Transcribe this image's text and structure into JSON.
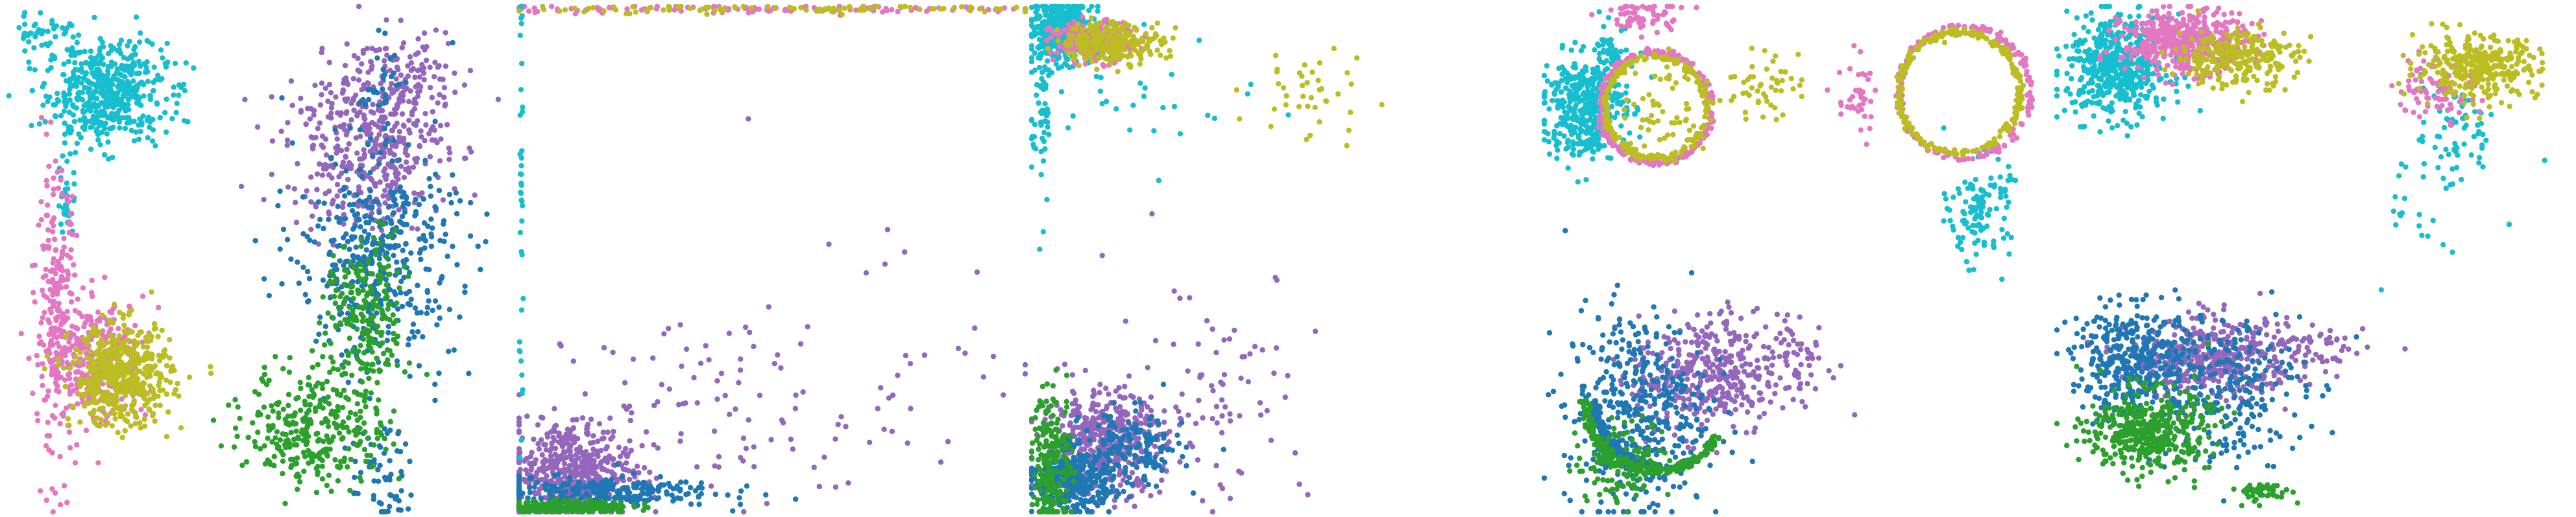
{
  "colors": {
    "cyan": "#17becf",
    "pink": "#e377c2",
    "olive": "#bcbd22",
    "purple": "#9467bd",
    "blue": "#1f77b4",
    "green": "#2ca02c"
  },
  "chart_data": [
    {
      "type": "scatter",
      "panel": 1,
      "grid": false,
      "axes": "hidden",
      "series": [
        {
          "color": "cyan",
          "clusters": [
            {
              "cx": 0.2,
              "cy": 0.83,
              "sx": 0.06,
              "sy": 0.05,
              "n": 520
            },
            {
              "cx": 0.08,
              "cy": 0.95,
              "sx": 0.03,
              "sy": 0.02,
              "n": 40
            },
            {
              "cx": 0.12,
              "cy": 0.62,
              "sx": 0.01,
              "sy": 0.04,
              "n": 30
            }
          ]
        },
        {
          "color": "pink",
          "clusters": [
            {
              "cx": 0.1,
              "cy": 0.38,
              "sx": 0.02,
              "sy": 0.14,
              "n": 220
            },
            {
              "cx": 0.18,
              "cy": 0.3,
              "sx": 0.05,
              "sy": 0.06,
              "n": 300
            }
          ]
        },
        {
          "color": "olive",
          "clusters": [
            {
              "cx": 0.23,
              "cy": 0.27,
              "sx": 0.05,
              "sy": 0.05,
              "n": 500
            }
          ]
        },
        {
          "color": "purple",
          "clusters": [
            {
              "cx": 0.72,
              "cy": 0.72,
              "sx": 0.08,
              "sy": 0.08,
              "n": 420
            },
            {
              "cx": 0.8,
              "cy": 0.86,
              "sx": 0.06,
              "sy": 0.05,
              "n": 120
            }
          ]
        },
        {
          "color": "blue",
          "clusters": [
            {
              "cx": 0.74,
              "cy": 0.5,
              "sx": 0.08,
              "sy": 0.1,
              "n": 450
            },
            {
              "cx": 0.75,
              "cy": 0.07,
              "sx": 0.03,
              "sy": 0.05,
              "n": 60
            },
            {
              "cx": 0.75,
              "cy": 0.85,
              "sx": 0.02,
              "sy": 0.04,
              "n": 30
            }
          ]
        },
        {
          "color": "green",
          "clusters": [
            {
              "cx": 0.62,
              "cy": 0.17,
              "sx": 0.07,
              "sy": 0.06,
              "n": 320
            },
            {
              "cx": 0.72,
              "cy": 0.38,
              "sx": 0.04,
              "sy": 0.08,
              "n": 220
            }
          ]
        }
      ]
    },
    {
      "type": "scatter",
      "panel": 2,
      "grid": false,
      "axes": "hidden",
      "series": [
        {
          "color": "purple",
          "clusters": [
            {
              "cx": 0.1,
              "cy": 0.08,
              "sx": 0.06,
              "sy": 0.05,
              "n": 500
            },
            {
              "cx": 0.4,
              "cy": 0.2,
              "sx": 0.18,
              "sy": 0.1,
              "n": 110
            },
            {
              "cx": 0.75,
              "cy": 0.35,
              "sx": 0.15,
              "sy": 0.12,
              "n": 20
            }
          ]
        },
        {
          "color": "blue",
          "clusters": [
            {
              "cx": 0.15,
              "cy": 0.04,
              "sx": 0.12,
              "sy": 0.015,
              "n": 250
            }
          ]
        },
        {
          "color": "green",
          "clusters": [
            {
              "cx": 0.1,
              "cy": 0.01,
              "sx": 0.06,
              "sy": 0.006,
              "n": 220
            }
          ]
        },
        {
          "color": "pink",
          "clusters": [
            {
              "cx": 0.45,
              "cy": 0.995,
              "sx": 0.3,
              "sy": 0.004,
              "n": 120
            }
          ]
        },
        {
          "color": "olive",
          "clusters": [
            {
              "cx": 0.55,
              "cy": 0.995,
              "sx": 0.25,
              "sy": 0.004,
              "n": 90
            }
          ]
        },
        {
          "color": "cyan",
          "clusters": [
            {
              "cx": 0.005,
              "cy": 0.55,
              "sx": 0.002,
              "sy": 0.25,
              "n": 40
            }
          ]
        }
      ]
    },
    {
      "type": "scatter",
      "panel": 3,
      "grid": false,
      "axes": "hidden",
      "series": [
        {
          "color": "cyan",
          "clusters": [
            {
              "cx": 0.06,
              "cy": 0.95,
              "sx": 0.03,
              "sy": 0.03,
              "n": 500
            },
            {
              "cx": 0.02,
              "cy": 0.8,
              "sx": 0.01,
              "sy": 0.1,
              "n": 60
            },
            {
              "cx": 0.2,
              "cy": 0.8,
              "sx": 0.12,
              "sy": 0.06,
              "n": 30
            }
          ]
        },
        {
          "color": "pink",
          "clusters": [
            {
              "cx": 0.12,
              "cy": 0.93,
              "sx": 0.04,
              "sy": 0.02,
              "n": 220
            }
          ]
        },
        {
          "color": "olive",
          "clusters": [
            {
              "cx": 0.16,
              "cy": 0.93,
              "sx": 0.05,
              "sy": 0.02,
              "n": 260
            },
            {
              "cx": 0.55,
              "cy": 0.82,
              "sx": 0.06,
              "sy": 0.05,
              "n": 40
            }
          ]
        },
        {
          "color": "purple",
          "clusters": [
            {
              "cx": 0.14,
              "cy": 0.14,
              "sx": 0.06,
              "sy": 0.05,
              "n": 420
            },
            {
              "cx": 0.35,
              "cy": 0.25,
              "sx": 0.1,
              "sy": 0.12,
              "n": 90
            }
          ]
        },
        {
          "color": "blue",
          "clusters": [
            {
              "cx": 0.08,
              "cy": 0.06,
              "sx": 0.04,
              "sy": 0.03,
              "n": 350
            },
            {
              "cx": 0.2,
              "cy": 0.12,
              "sx": 0.05,
              "sy": 0.04,
              "n": 160
            }
          ]
        },
        {
          "color": "green",
          "clusters": [
            {
              "cx": 0.04,
              "cy": 0.1,
              "sx": 0.02,
              "sy": 0.07,
              "n": 200
            }
          ]
        }
      ]
    },
    {
      "type": "scatter",
      "panel": 4,
      "grid": false,
      "axes": "hidden",
      "series": [
        {
          "color": "cyan",
          "clusters": [
            {
              "cx": 0.08,
              "cy": 0.8,
              "sx": 0.04,
              "sy": 0.05,
              "n": 420
            },
            {
              "cx": 0.14,
              "cy": 0.9,
              "sx": 0.02,
              "sy": 0.03,
              "n": 60
            },
            {
              "cx": 0.86,
              "cy": 0.6,
              "sx": 0.03,
              "sy": 0.05,
              "n": 120
            }
          ]
        },
        {
          "color": "pink",
          "rings": [
            {
              "cx": 0.22,
              "cy": 0.8,
              "r": 0.11,
              "n": 220
            },
            {
              "cx": 0.83,
              "cy": 0.83,
              "r": 0.13,
              "n": 180
            }
          ],
          "clusters": [
            {
              "cx": 0.19,
              "cy": 0.98,
              "sx": 0.04,
              "sy": 0.02,
              "n": 60
            },
            {
              "cx": 0.62,
              "cy": 0.82,
              "sx": 0.02,
              "sy": 0.04,
              "n": 40
            }
          ]
        },
        {
          "color": "olive",
          "rings": [
            {
              "cx": 0.22,
              "cy": 0.8,
              "r": 0.1,
              "n": 220
            },
            {
              "cx": 0.82,
              "cy": 0.83,
              "r": 0.12,
              "n": 260
            }
          ],
          "clusters": [
            {
              "cx": 0.42,
              "cy": 0.84,
              "sx": 0.04,
              "sy": 0.03,
              "n": 50
            },
            {
              "cx": 0.25,
              "cy": 0.8,
              "sx": 0.04,
              "sy": 0.06,
              "n": 60
            }
          ]
        },
        {
          "color": "purple",
          "clusters": [
            {
              "cx": 0.32,
              "cy": 0.27,
              "sx": 0.07,
              "sy": 0.06,
              "n": 360
            },
            {
              "cx": 0.5,
              "cy": 0.3,
              "sx": 0.04,
              "sy": 0.05,
              "n": 60
            }
          ]
        },
        {
          "color": "blue",
          "rings": [
            {
              "cx": 0.23,
              "cy": 0.22,
              "r": 0.13,
              "n": 200,
              "arc": [
                180,
                270
              ]
            }
          ],
          "clusters": [
            {
              "cx": 0.18,
              "cy": 0.2,
              "sx": 0.07,
              "sy": 0.1,
              "n": 420
            }
          ]
        },
        {
          "color": "green",
          "rings": [
            {
              "cx": 0.22,
              "cy": 0.22,
              "r": 0.14,
              "n": 260,
              "arc": [
                180,
                330
              ]
            }
          ],
          "clusters": [
            {
              "cx": 0.16,
              "cy": 0.1,
              "sx": 0.05,
              "sy": 0.04,
              "n": 120
            }
          ]
        }
      ]
    },
    {
      "type": "scatter",
      "panel": 5,
      "grid": false,
      "axes": "hidden",
      "series": [
        {
          "color": "cyan",
          "clusters": [
            {
              "cx": 0.12,
              "cy": 0.88,
              "sx": 0.05,
              "sy": 0.05,
              "n": 520
            },
            {
              "cx": 0.78,
              "cy": 0.75,
              "sx": 0.04,
              "sy": 0.06,
              "n": 70
            },
            {
              "cx": 0.7,
              "cy": 0.6,
              "sx": 0.03,
              "sy": 0.06,
              "n": 20
            }
          ]
        },
        {
          "color": "pink",
          "clusters": [
            {
              "cx": 0.25,
              "cy": 0.93,
              "sx": 0.06,
              "sy": 0.03,
              "n": 450
            },
            {
              "cx": 0.74,
              "cy": 0.84,
              "sx": 0.04,
              "sy": 0.03,
              "n": 80
            }
          ]
        },
        {
          "color": "olive",
          "clusters": [
            {
              "cx": 0.35,
              "cy": 0.9,
              "sx": 0.06,
              "sy": 0.03,
              "n": 250
            },
            {
              "cx": 0.82,
              "cy": 0.88,
              "sx": 0.06,
              "sy": 0.03,
              "n": 320
            }
          ]
        },
        {
          "color": "purple",
          "clusters": [
            {
              "cx": 0.3,
              "cy": 0.3,
              "sx": 0.08,
              "sy": 0.04,
              "n": 420
            },
            {
              "cx": 0.5,
              "cy": 0.32,
              "sx": 0.05,
              "sy": 0.03,
              "n": 60
            }
          ]
        },
        {
          "color": "blue",
          "clusters": [
            {
              "cx": 0.15,
              "cy": 0.3,
              "sx": 0.06,
              "sy": 0.05,
              "n": 360
            },
            {
              "cx": 0.32,
              "cy": 0.25,
              "sx": 0.08,
              "sy": 0.08,
              "n": 260
            }
          ]
        },
        {
          "color": "green",
          "clusters": [
            {
              "cx": 0.18,
              "cy": 0.16,
              "sx": 0.06,
              "sy": 0.04,
              "n": 420
            },
            {
              "cx": 0.4,
              "cy": 0.04,
              "sx": 0.03,
              "sy": 0.01,
              "n": 50
            }
          ]
        }
      ]
    }
  ]
}
